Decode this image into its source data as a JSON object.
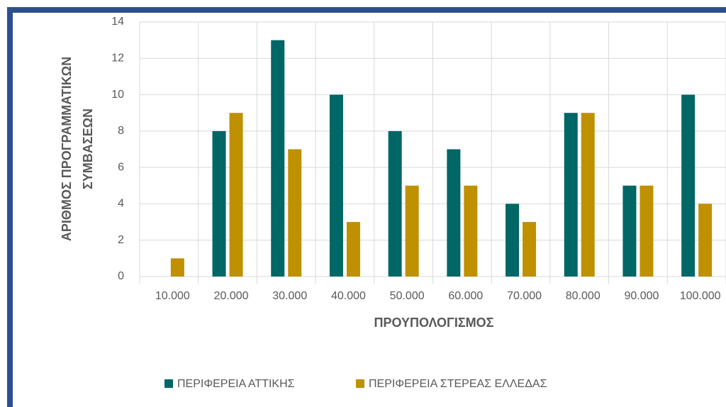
{
  "chart_data": {
    "type": "bar",
    "xlabel": "ΠΡΟΥΠΟΛΟΓΙΣΜΟΣ",
    "ylabel": [
      "ΑΡΙΘΜΟΣ ΠΡΟΓΡΑΜΜΑΤΙΚΩΝ",
      "ΣΥΜΒΑΣΕΩΝ"
    ],
    "categories": [
      "10.000",
      "20.000",
      "30.000",
      "40.000",
      "50.000",
      "60.000",
      "70.000",
      "80.000",
      "90.000",
      "100.000"
    ],
    "series": [
      {
        "name": "ΠΕΡΙΦΕΡΕΙΑ ΑΤΤΙΚΗΣ",
        "color": "#006666",
        "values": [
          0,
          8,
          13,
          10,
          8,
          7,
          4,
          9,
          5,
          10
        ]
      },
      {
        "name": "ΠΕΡΙΦΕΡΕΙΑ ΣΤΕΡΕΑΣ ΕΛΛΕΔΑΣ",
        "color": "#bf9000",
        "values": [
          1,
          9,
          7,
          3,
          5,
          5,
          3,
          9,
          5,
          4
        ]
      }
    ],
    "ylim": [
      0,
      14
    ],
    "yticks": [
      0,
      2,
      4,
      6,
      8,
      10,
      12,
      14
    ],
    "grid": true,
    "legend": "bottom"
  }
}
